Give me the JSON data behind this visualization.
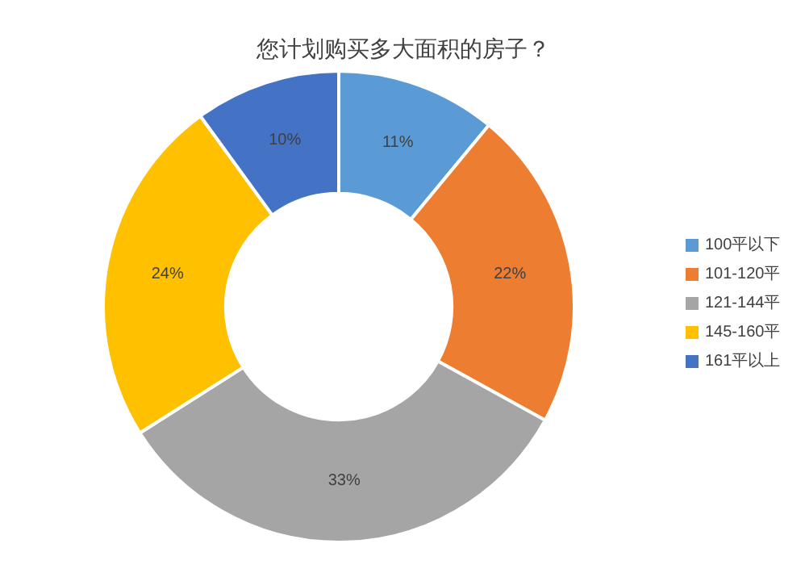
{
  "chart_data": {
    "type": "donut",
    "title": "您计划购买多大面积的房子？",
    "categories": [
      "100平以下",
      "101-120平",
      "121-144平",
      "145-160平",
      "161平以上"
    ],
    "values": [
      11,
      22,
      33,
      24,
      10
    ],
    "colors": [
      "#5b9bd5",
      "#ed7d31",
      "#a5a5a5",
      "#ffc000",
      "#4472c4"
    ],
    "value_labels": [
      "11%",
      "22%",
      "33%",
      "24%",
      "10%"
    ],
    "legend": "right"
  }
}
